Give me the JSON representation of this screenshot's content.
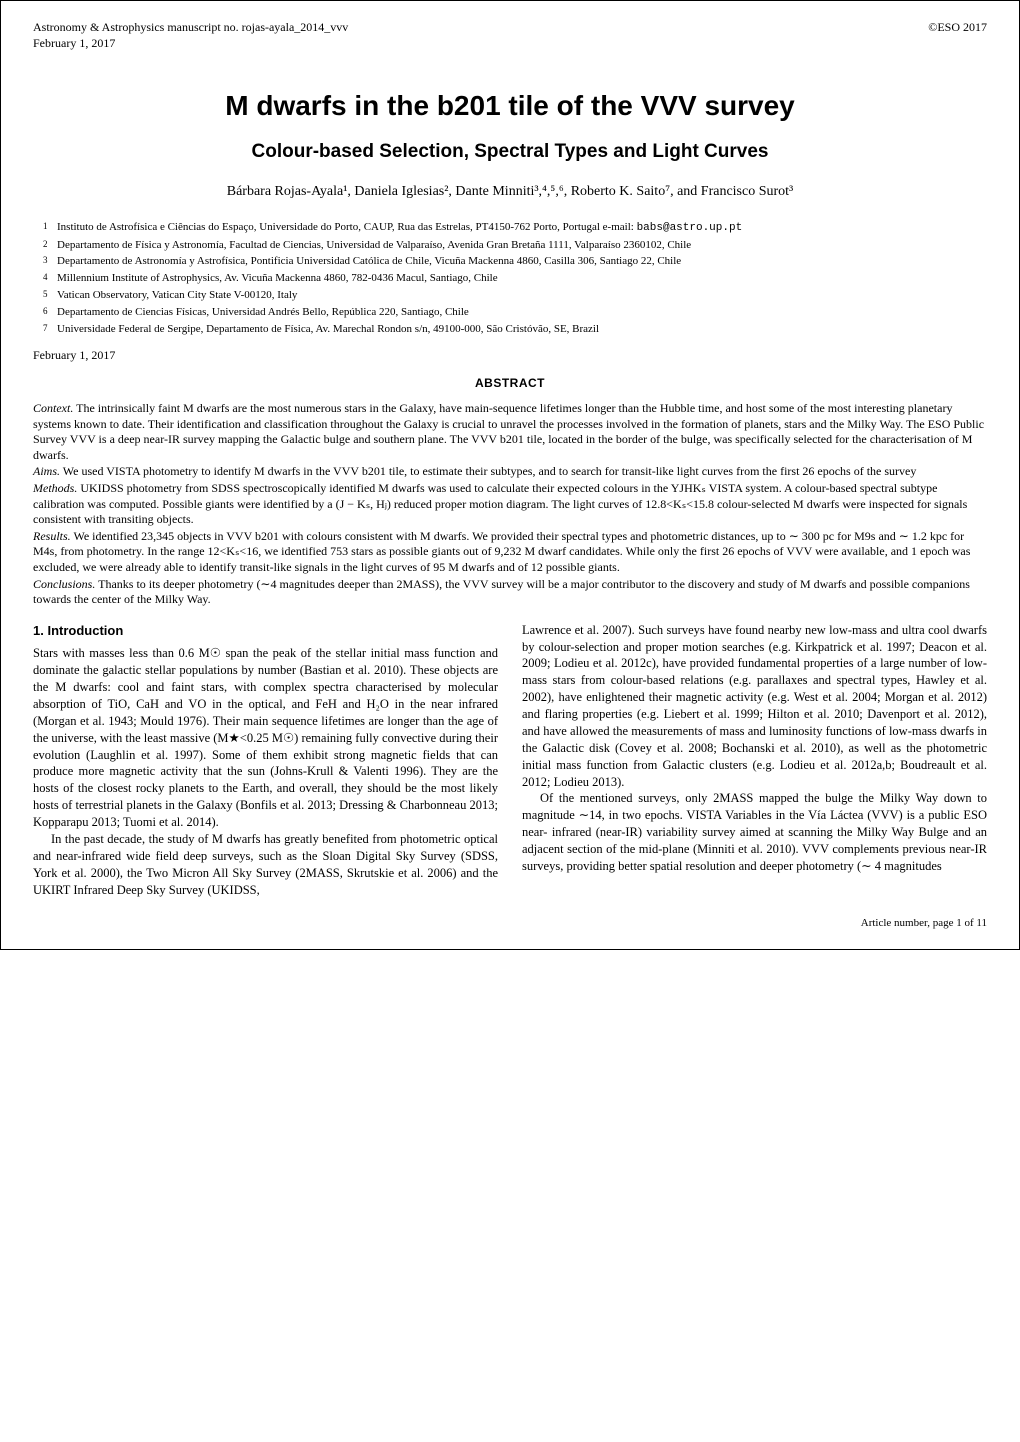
{
  "header": {
    "journal_line1": "Astronomy & Astrophysics manuscript no. rojas-ayala_2014_vvv",
    "journal_line2": "February 1, 2017",
    "copyright": "©ESO 2017"
  },
  "title": "M dwarfs in the b201 tile of the VVV survey",
  "subtitle": "Colour-based Selection, Spectral Types and Light Curves",
  "authors": "Bárbara Rojas-Ayala¹, Daniela Iglesias², Dante Minniti³,⁴,⁵,⁶, Roberto K. Saito⁷, and Francisco Surot³",
  "affiliations": [
    {
      "num": "1",
      "text": "Instituto de Astrofísica e Ciências do Espaço, Universidade do Porto, CAUP, Rua das Estrelas, PT4150-762 Porto, Portugal e-mail: ",
      "email": "babs@astro.up.pt"
    },
    {
      "num": "2",
      "text": "Departamento de Física y Astronomía, Facultad de Ciencias, Universidad de Valparaíso, Avenida Gran Bretaña 1111, Valparaíso 2360102, Chile"
    },
    {
      "num": "3",
      "text": "Departamento de Astronomía y Astrofísica, Pontificia Universidad Católica de Chile, Vicuña Mackenna 4860, Casilla 306, Santiago 22, Chile"
    },
    {
      "num": "4",
      "text": "Millennium Institute of Astrophysics, Av. Vicuña Mackenna 4860, 782-0436 Macul, Santiago, Chile"
    },
    {
      "num": "5",
      "text": "Vatican Observatory, Vatican City State V-00120, Italy"
    },
    {
      "num": "6",
      "text": "Departamento de Ciencias Físicas, Universidad Andrés Bello, República 220, Santiago, Chile"
    },
    {
      "num": "7",
      "text": "Universidade Federal de Sergipe, Departamento de Física, Av. Marechal Rondon s/n, 49100-000, São Cristóvão, SE, Brazil"
    }
  ],
  "date": "February 1, 2017",
  "abstract_heading": "ABSTRACT",
  "abstract": {
    "context_label": "Context.",
    "context": "The intrinsically faint M dwarfs are the most numerous stars in the Galaxy, have main-sequence lifetimes longer than the Hubble time, and host some of the most interesting planetary systems known to date. Their identification and classification throughout the Galaxy is crucial to unravel the processes involved in the formation of planets, stars and the Milky Way. The ESO Public Survey VVV is a deep near-IR survey mapping the Galactic bulge and southern plane. The VVV b201 tile, located in the border of the bulge, was specifically selected for the characterisation of M dwarfs.",
    "aims_label": "Aims.",
    "aims": "We used VISTA photometry to identify M dwarfs in the VVV b201 tile, to estimate their subtypes, and to search for transit-like light curves from the first 26 epochs of the survey",
    "methods_label": "Methods.",
    "methods": "UKIDSS photometry from SDSS spectroscopically identified M dwarfs was used to calculate their expected colours in the YJHKₛ VISTA system. A colour-based spectral subtype calibration was computed. Possible giants were identified by a (J − Kₛ, Hⱼ) reduced proper motion diagram. The light curves of 12.8<Kₛ<15.8 colour-selected M dwarfs were inspected for signals consistent with transiting objects.",
    "results_label": "Results.",
    "results": "We identified 23,345 objects in VVV b201 with colours consistent with M dwarfs. We provided their spectral types and photometric distances, up to ∼ 300 pc for M9s and ∼ 1.2 kpc for M4s, from photometry. In the range 12<Kₛ<16, we identified 753 stars as possible giants out of 9,232 M dwarf candidates. While only the first 26 epochs of VVV were available, and 1 epoch was excluded, we were already able to identify transit-like signals in the light curves of 95 M dwarfs and of 12 possible giants.",
    "conclusions_label": "Conclusions.",
    "conclusions": "Thanks to its deeper photometry (∼4 magnitudes deeper than 2MASS), the VVV survey will be a major contributor to the discovery and study of M dwarfs and possible companions towards the center of the Milky Way."
  },
  "section": {
    "heading": "1. Introduction",
    "col1_p1": "Stars with masses less than 0.6 M☉ span the peak of the stellar initial mass function and dominate the galactic stellar populations by number (Bastian et al. 2010). These objects are the M dwarfs: cool and faint stars, with complex spectra characterised by molecular absorption of TiO, CaH and VO in the optical, and FeH and H₂O in the near infrared (Morgan et al. 1943; Mould 1976). Their main sequence lifetimes are longer than the age of the universe, with the least massive (M★<0.25 M☉) remaining fully convective during their evolution (Laughlin et al. 1997). Some of them exhibit strong magnetic fields that can produce more magnetic activity that the sun (Johns-Krull & Valenti 1996). They are the hosts of the closest rocky planets to the Earth, and overall, they should be the most likely hosts of terrestrial planets in the Galaxy (Bonfils et al. 2013; Dressing & Charbonneau 2013; Kopparapu 2013; Tuomi et al. 2014).",
    "col1_p2": "In the past decade, the study of M dwarfs has greatly benefited from photometric optical and near-infrared wide field deep surveys, such as the Sloan Digital Sky Survey (SDSS, York et al. 2000), the Two Micron All Sky Survey (2MASS, Skrutskie et al. 2006) and the UKIRT Infrared Deep Sky Survey (UKIDSS,",
    "col2_p1": "Lawrence et al. 2007). Such surveys have found nearby new low-mass and ultra cool dwarfs by colour-selection and proper motion searches (e.g. Kirkpatrick et al. 1997; Deacon et al. 2009; Lodieu et al. 2012c), have provided fundamental properties of a large number of low-mass stars from colour-based relations (e.g. parallaxes and spectral types, Hawley et al. 2002), have enlightened their magnetic activity (e.g. West et al. 2004; Morgan et al. 2012) and flaring properties (e.g. Liebert et al. 1999; Hilton et al. 2010; Davenport et al. 2012), and have allowed the measurements of mass and luminosity functions of low-mass dwarfs in the Galactic disk (Covey et al. 2008; Bochanski et al. 2010), as well as the photometric initial mass function from Galactic clusters (e.g. Lodieu et al. 2012a,b; Boudreault et al. 2012; Lodieu 2013).",
    "col2_p2": "Of the mentioned surveys, only 2MASS mapped the bulge the Milky Way down to magnitude ∼14, in two epochs. VISTA Variables in the Vía Láctea (VVV) is a public ESO near- infrared (near-IR) variability survey aimed at scanning the Milky Way Bulge and an adjacent section of the mid-plane (Minniti et al. 2010). VVV complements previous near-IR surveys, providing better spatial resolution and deeper photometry (∼ 4 magnitudes"
  },
  "footer": "Article number, page 1 of 11"
}
